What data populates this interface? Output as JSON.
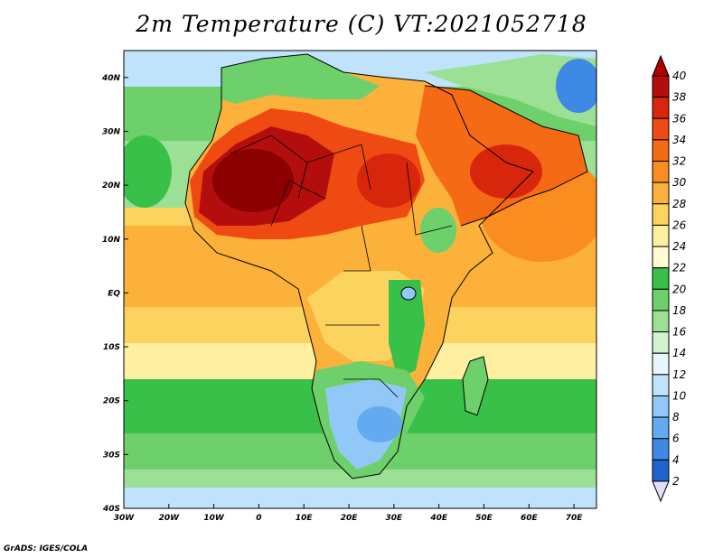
{
  "title": "2m Temperature (C) VT:2021052718",
  "credit": "GrADS: IGES/COLA",
  "map": {
    "lon_ticks": [
      "30W",
      "20W",
      "10W",
      "0",
      "10E",
      "20E",
      "30E",
      "40E",
      "50E",
      "60E",
      "70E"
    ],
    "lat_ticks": [
      "40N",
      "30N",
      "20N",
      "10N",
      "EQ",
      "10S",
      "20S",
      "30S",
      "40S"
    ],
    "lon_range": [
      -30,
      75
    ],
    "lat_range": [
      -40,
      45
    ]
  },
  "colorbar": {
    "levels": [
      "40",
      "38",
      "36",
      "34",
      "32",
      "30",
      "28",
      "26",
      "24",
      "22",
      "20",
      "18",
      "16",
      "14",
      "12",
      "10",
      "8",
      "6",
      "4",
      "2"
    ],
    "colors": [
      "#8b0000",
      "#b40d0d",
      "#d7260c",
      "#ee4a11",
      "#f56a15",
      "#f98d1f",
      "#fbb13a",
      "#fdd35f",
      "#fef0a0",
      "#fffbd5",
      "#39c048",
      "#6ed06a",
      "#9be095",
      "#d2f2d0",
      "#e9f7fc",
      "#bfe3fb",
      "#91c8f7",
      "#63aaf0",
      "#3d89e4",
      "#1e62cc",
      "#0b3ca8",
      "#0a1e78",
      "#e0def8"
    ],
    "top_color": "#b00000",
    "bottom_color": "#e0def8"
  }
}
